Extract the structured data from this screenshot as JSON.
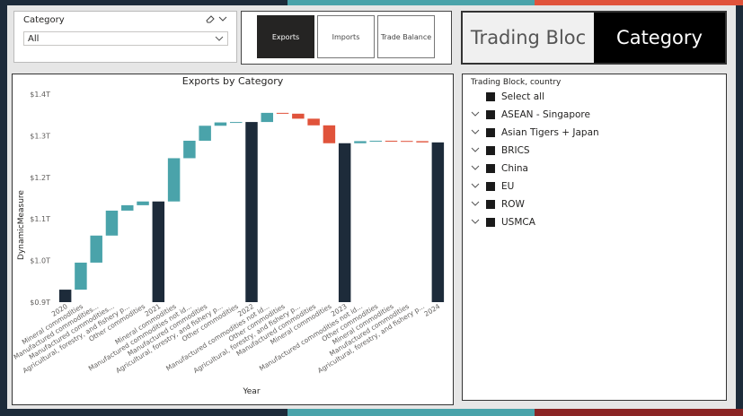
{
  "colors": {
    "increase": "#4aa3aa",
    "decrease": "#e0533b",
    "total": "#1d2b3a",
    "bg": "#e6e6e6"
  },
  "category_slicer": {
    "title": "Category",
    "value": "All",
    "eraser_icon": "eraser-icon",
    "chevron_icon": "chevron-down-icon"
  },
  "view_buttons": [
    "Exports",
    "Imports",
    "Trade Balance"
  ],
  "mode_toggle": {
    "left": "Trading Bloc",
    "right": "Category"
  },
  "legend": {
    "title": "Trading Block, country",
    "select_all": "Select all",
    "items": [
      "ASEAN - Singapore",
      "Asian Tigers + Japan",
      "BRICS",
      "China",
      "EU",
      "ROW",
      "USMCA"
    ]
  },
  "chart_data": {
    "type": "waterfall",
    "title": "Exports by Category",
    "xlabel": "Year",
    "ylabel": "DynamicMeasure",
    "ylim": [
      0.9,
      1.4
    ],
    "yticks": [
      "$0.9T",
      "$1.0T",
      "$1.1T",
      "$1.2T",
      "$1.3T",
      "$1.4T"
    ],
    "ytick_values": [
      0.9,
      1.0,
      1.1,
      1.2,
      1.3,
      1.4
    ],
    "bars": [
      {
        "label": "2020",
        "kind": "total",
        "start": 0.9,
        "end": 0.93
      },
      {
        "label": "Mineral commodities",
        "kind": "increase",
        "start": 0.93,
        "end": 0.995
      },
      {
        "label": "Manufactured commodities...",
        "kind": "increase",
        "start": 0.995,
        "end": 1.06
      },
      {
        "label": "Manufactured commodities...",
        "kind": "increase",
        "start": 1.06,
        "end": 1.12
      },
      {
        "label": "Agricultural, forestry, and fishery p...",
        "kind": "increase",
        "start": 1.12,
        "end": 1.133
      },
      {
        "label": "Other commodities",
        "kind": "increase",
        "start": 1.133,
        "end": 1.142
      },
      {
        "label": "2021",
        "kind": "total",
        "start": 0.9,
        "end": 1.142
      },
      {
        "label": "Mineral commodities",
        "kind": "increase",
        "start": 1.142,
        "end": 1.246
      },
      {
        "label": "Manufactured commodities not id...",
        "kind": "increase",
        "start": 1.246,
        "end": 1.288
      },
      {
        "label": "Manufactured commodities",
        "kind": "increase",
        "start": 1.288,
        "end": 1.324
      },
      {
        "label": "Agricultural, forestry, and fishery p...",
        "kind": "increase",
        "start": 1.324,
        "end": 1.332
      },
      {
        "label": "Other commodities",
        "kind": "increase",
        "start": 1.332,
        "end": 1.333
      },
      {
        "label": "2022",
        "kind": "total",
        "start": 0.9,
        "end": 1.333
      },
      {
        "label": "Manufactured commodities not id...",
        "kind": "increase",
        "start": 1.333,
        "end": 1.355
      },
      {
        "label": "Other commodities",
        "kind": "decrease",
        "start": 1.355,
        "end": 1.353
      },
      {
        "label": "Agricultural, forestry, and fishery p...",
        "kind": "decrease",
        "start": 1.353,
        "end": 1.341
      },
      {
        "label": "Manufactured commodities",
        "kind": "decrease",
        "start": 1.341,
        "end": 1.325
      },
      {
        "label": "Mineral commodities",
        "kind": "decrease",
        "start": 1.325,
        "end": 1.282
      },
      {
        "label": "2023",
        "kind": "total",
        "start": 0.9,
        "end": 1.282
      },
      {
        "label": "Manufactured commodities not id...",
        "kind": "increase",
        "start": 1.282,
        "end": 1.287
      },
      {
        "label": "Other commodities",
        "kind": "increase",
        "start": 1.287,
        "end": 1.288
      },
      {
        "label": "Mineral commodities",
        "kind": "decrease",
        "start": 1.288,
        "end": 1.2875
      },
      {
        "label": "Manufactured commodities",
        "kind": "decrease",
        "start": 1.2875,
        "end": 1.287
      },
      {
        "label": "Agricultural, forestry, and fishery p...",
        "kind": "decrease",
        "start": 1.287,
        "end": 1.284
      },
      {
        "label": "2024",
        "kind": "total",
        "start": 0.9,
        "end": 1.284
      }
    ]
  }
}
